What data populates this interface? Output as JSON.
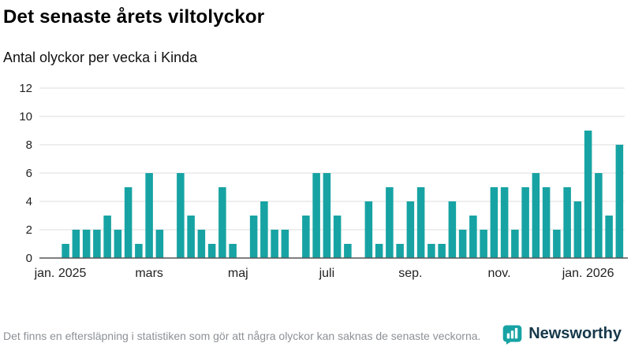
{
  "header": {
    "title": "Det senaste årets viltolyckor",
    "subtitle": "Antal olyckor per vecka i Kinda"
  },
  "chart_data": {
    "type": "bar",
    "title": "Det senaste årets viltolyckor",
    "subtitle": "Antal olyckor per vecka i Kinda",
    "ylabel": "Antal olyckor per vecka",
    "xlabel": "",
    "ylim": [
      0,
      12
    ],
    "y_ticks": [
      0,
      2,
      4,
      6,
      8,
      10,
      12
    ],
    "grid": true,
    "bar_color": "#17A3A3",
    "x_ticks": [
      {
        "label": "jan. 2025",
        "week_index": 1.5
      },
      {
        "label": "mars",
        "week_index": 10
      },
      {
        "label": "maj",
        "week_index": 18.5
      },
      {
        "label": "juli",
        "week_index": 27
      },
      {
        "label": "sep.",
        "week_index": 35
      },
      {
        "label": "nov.",
        "week_index": 43.5
      },
      {
        "label": "jan. 2026",
        "week_index": 52
      }
    ],
    "values": [
      0,
      0,
      1,
      2,
      2,
      2,
      3,
      2,
      5,
      1,
      6,
      2,
      0,
      6,
      3,
      2,
      1,
      5,
      1,
      0,
      3,
      4,
      2,
      2,
      0,
      3,
      6,
      6,
      3,
      1,
      0,
      4,
      1,
      5,
      1,
      4,
      5,
      1,
      1,
      4,
      2,
      3,
      2,
      5,
      5,
      2,
      5,
      6,
      5,
      2,
      5,
      4,
      9,
      6,
      3,
      8
    ]
  },
  "footer": {
    "note": "Det finns en eftersläpning i statistiken som gör att några olyckor kan saknas de senaste veckorna.",
    "brand": "Newsworthy"
  },
  "colors": {
    "accent": "#17A3A3",
    "brand_text": "#16384A",
    "grid_line": "#DDDDDD",
    "axis_line": "#555555",
    "note_text": "#8C9196"
  }
}
